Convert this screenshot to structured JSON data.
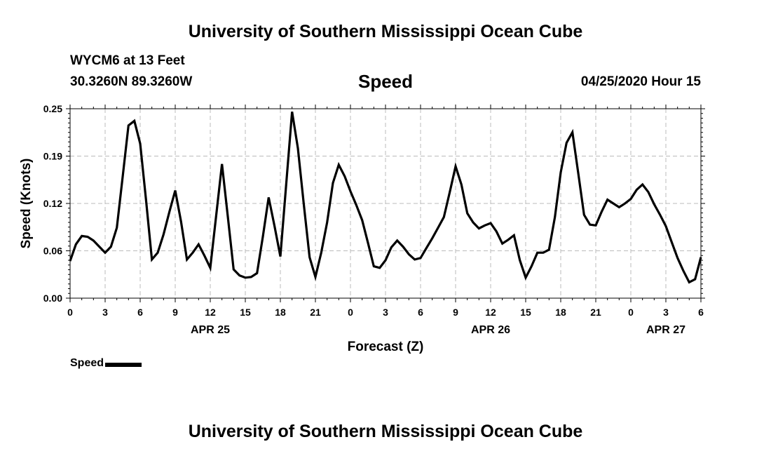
{
  "header": {
    "title": "University of Southern Mississippi Ocean Cube",
    "station": "WYCM6 at 13 Feet",
    "coordinates": "30.3260N 89.3260W",
    "datetime": "04/25/2020 Hour 15"
  },
  "footer": {
    "title": "University of Southern Mississippi Ocean Cube"
  },
  "chart_data": {
    "type": "line",
    "title": "Speed",
    "ylabel": "Speed (Knots)",
    "xlabel": "Forecast (Z)",
    "ylim": [
      0,
      0.25
    ],
    "yticks": [
      "0.00",
      "0.06",
      "0.12",
      "0.19",
      "0.25"
    ],
    "xlim_hours": [
      0,
      54
    ],
    "xtick_labels": [
      "0",
      "3",
      "6",
      "9",
      "12",
      "15",
      "18",
      "21",
      "0",
      "3",
      "6",
      "9",
      "12",
      "15",
      "18",
      "21",
      "0",
      "3",
      "6"
    ],
    "date_labels": [
      {
        "label": "APR 25",
        "hour": 12
      },
      {
        "label": "APR 26",
        "hour": 36
      },
      {
        "label": "APR 27",
        "hour": 51
      }
    ],
    "grid": true,
    "legend": "bottom-left",
    "series": [
      {
        "name": "Speed",
        "color": "#000000",
        "x": [
          0,
          0.5,
          1,
          1.5,
          2,
          2.5,
          3,
          3.5,
          4,
          4.5,
          5,
          5.5,
          6,
          6.5,
          7,
          7.5,
          8,
          8.5,
          9,
          9.5,
          10,
          10.5,
          11,
          11.5,
          12,
          12.5,
          13,
          13.5,
          14,
          14.5,
          15,
          15.5,
          16,
          16.5,
          17,
          17.5,
          18,
          18.5,
          19,
          19.5,
          20,
          20.5,
          21,
          21.5,
          22,
          22.5,
          23,
          23.5,
          24,
          24.5,
          25,
          25.5,
          26,
          26.5,
          27,
          27.5,
          28,
          28.5,
          29,
          29.5,
          30,
          30.5,
          31,
          31.5,
          32,
          32.5,
          33,
          33.5,
          34,
          34.5,
          35,
          35.5,
          36,
          36.5,
          37,
          37.5,
          38,
          38.5,
          39,
          39.5,
          40,
          40.5,
          41,
          41.5,
          42,
          42.5,
          43,
          43.5,
          44,
          44.5,
          45,
          45.5,
          46,
          46.5,
          47,
          47.5,
          48,
          48.5,
          49,
          49.5,
          50,
          50.5,
          51,
          51.5,
          52,
          52.5,
          53,
          53.5,
          54
        ],
        "y": [
          0.049,
          0.071,
          0.082,
          0.081,
          0.076,
          0.068,
          0.06,
          0.068,
          0.093,
          0.16,
          0.228,
          0.234,
          0.204,
          0.13,
          0.051,
          0.06,
          0.084,
          0.114,
          0.142,
          0.101,
          0.051,
          0.06,
          0.071,
          0.056,
          0.04,
          0.108,
          0.177,
          0.108,
          0.038,
          0.03,
          0.027,
          0.028,
          0.033,
          0.081,
          0.133,
          0.095,
          0.055,
          0.15,
          0.246,
          0.198,
          0.125,
          0.054,
          0.028,
          0.06,
          0.1,
          0.152,
          0.176,
          0.161,
          0.141,
          0.123,
          0.103,
          0.073,
          0.042,
          0.04,
          0.05,
          0.067,
          0.076,
          0.068,
          0.058,
          0.051,
          0.053,
          0.066,
          0.079,
          0.093,
          0.107,
          0.14,
          0.174,
          0.15,
          0.112,
          0.1,
          0.092,
          0.096,
          0.099,
          0.088,
          0.072,
          0.077,
          0.083,
          0.05,
          0.027,
          0.042,
          0.06,
          0.06,
          0.064,
          0.107,
          0.166,
          0.205,
          0.219,
          0.165,
          0.11,
          0.097,
          0.096,
          0.114,
          0.13,
          0.125,
          0.12,
          0.125,
          0.131,
          0.143,
          0.15,
          0.14,
          0.124,
          0.11,
          0.095,
          0.074,
          0.053,
          0.036,
          0.021,
          0.025,
          0.054
        ]
      }
    ]
  }
}
